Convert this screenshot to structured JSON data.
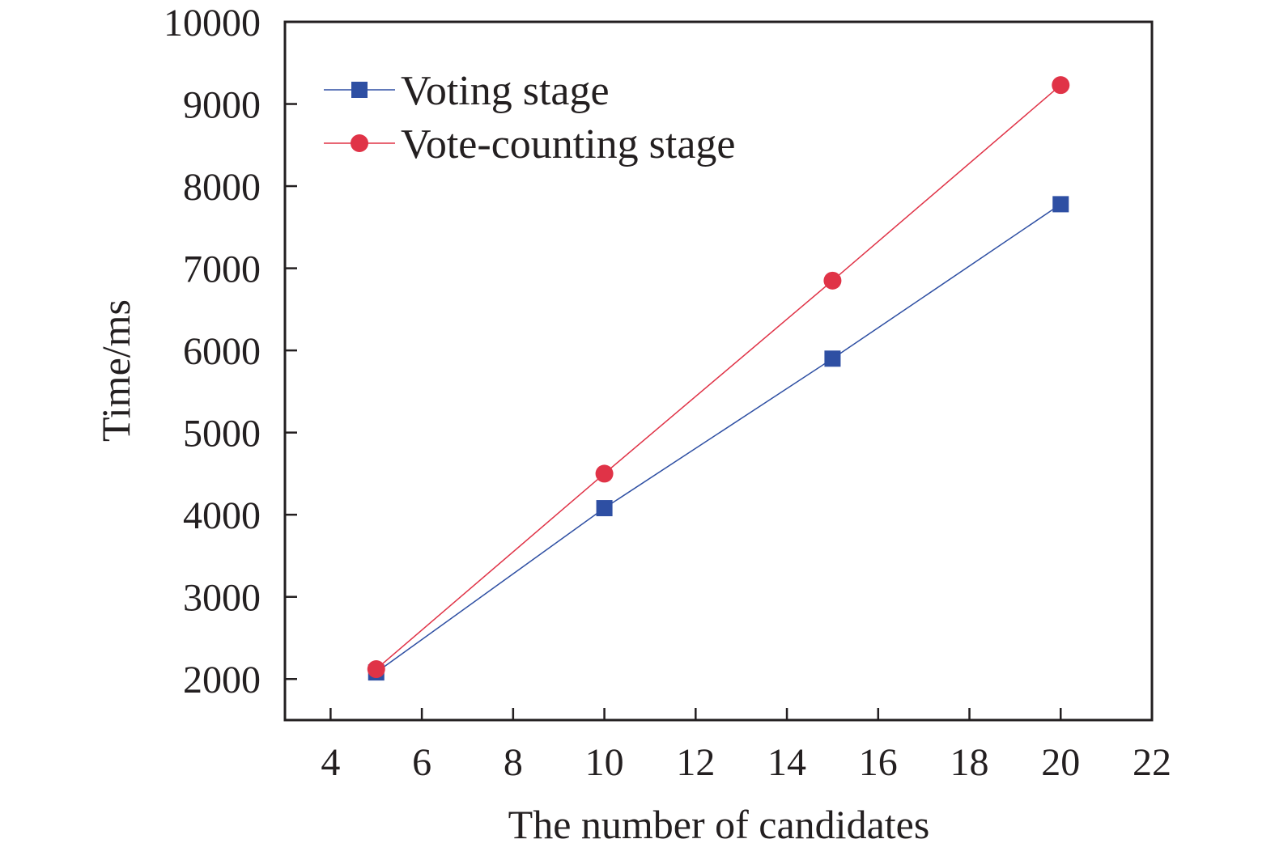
{
  "chart_data": {
    "type": "line",
    "xlabel": "The number of candidates",
    "ylabel": "Time/ms",
    "xlim": [
      3,
      22
    ],
    "ylim": [
      1500,
      10000
    ],
    "xticks": [
      4,
      6,
      8,
      10,
      12,
      14,
      16,
      18,
      20,
      22
    ],
    "yticks": [
      2000,
      3000,
      4000,
      5000,
      6000,
      7000,
      8000,
      9000,
      10000
    ],
    "x": [
      5,
      10,
      15,
      20
    ],
    "grid": false,
    "legend_position": "top-left",
    "series": [
      {
        "name": "Voting stage",
        "values": [
          2080,
          4080,
          5900,
          7780
        ],
        "color": "#2e4fa3",
        "marker": "square"
      },
      {
        "name": "Vote-counting stage",
        "values": [
          2120,
          4500,
          6850,
          9230
        ],
        "color": "#e03347",
        "marker": "circle"
      }
    ]
  }
}
